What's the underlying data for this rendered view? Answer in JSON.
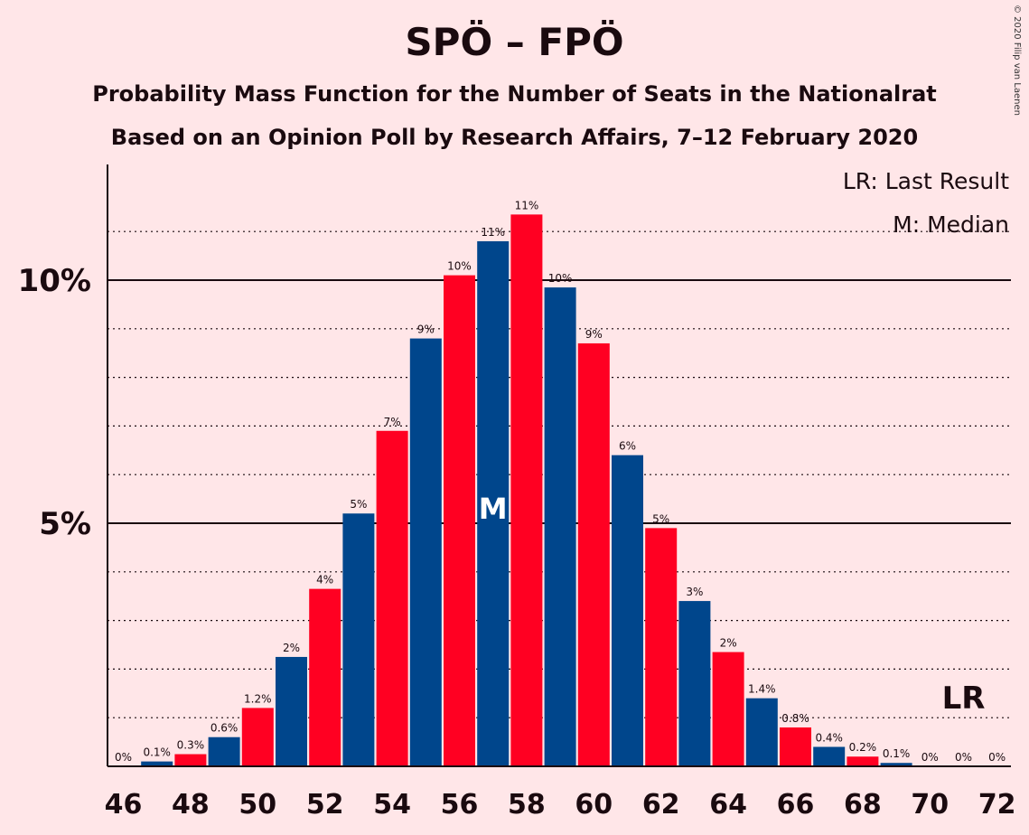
{
  "title": "SPÖ – FPÖ",
  "subtitle1": "Probability Mass Function for the Number of Seats in the Nationalrat",
  "subtitle2": "Based on an Opinion Poll by Research Affairs, 7–12 February 2020",
  "copyright": "© 2020 Filip van Laenen",
  "legend": {
    "last_result": "LR: Last Result",
    "median": "M: Median"
  },
  "markers": {
    "median_label": "M",
    "median_seat": 57,
    "last_result_label": "LR",
    "last_result_seat": 71
  },
  "colors": {
    "blue": "#00468C",
    "red": "#FF0022",
    "background": "#FFE6E8"
  },
  "chart_data": {
    "type": "bar",
    "x": [
      46,
      47,
      48,
      49,
      50,
      51,
      52,
      53,
      54,
      55,
      56,
      57,
      58,
      59,
      60,
      61,
      62,
      63,
      64,
      65,
      66,
      67,
      68,
      69,
      70,
      71,
      72
    ],
    "values": [
      0,
      0.1,
      0.25,
      0.6,
      1.2,
      2.25,
      3.65,
      5.2,
      6.9,
      8.8,
      10.1,
      10.8,
      11.35,
      9.85,
      8.7,
      6.4,
      4.9,
      3.4,
      2.35,
      1.4,
      0.8,
      0.4,
      0.2,
      0.07,
      0,
      0,
      0
    ],
    "labels": [
      "0%",
      "0.1%",
      "0.3%",
      "0.6%",
      "1.2%",
      "2%",
      "4%",
      "5%",
      "7%",
      "9%",
      "10%",
      "11%",
      "11%",
      "10%",
      "9%",
      "6%",
      "5%",
      "3%",
      "2%",
      "1.4%",
      "0.8%",
      "0.4%",
      "0.2%",
      "0.1%",
      "0%",
      "0%",
      "0%"
    ],
    "bar_colors": [
      "red",
      "blue",
      "red",
      "blue",
      "red",
      "blue",
      "red",
      "blue",
      "red",
      "blue",
      "red",
      "blue",
      "red",
      "blue",
      "red",
      "blue",
      "red",
      "blue",
      "red",
      "blue",
      "red",
      "blue",
      "red",
      "blue",
      "red",
      "blue",
      "red"
    ],
    "x_tick_labels": [
      "46",
      "48",
      "50",
      "52",
      "54",
      "56",
      "58",
      "60",
      "62",
      "64",
      "66",
      "68",
      "70",
      "72"
    ],
    "y_tick_labels": [
      {
        "value": 5,
        "label": "5%"
      },
      {
        "value": 10,
        "label": "10%"
      }
    ],
    "ylim": [
      0,
      12.4
    ],
    "grid": "dotted every 1%, solid at 5% and 10%",
    "legend_position": "top-right"
  }
}
